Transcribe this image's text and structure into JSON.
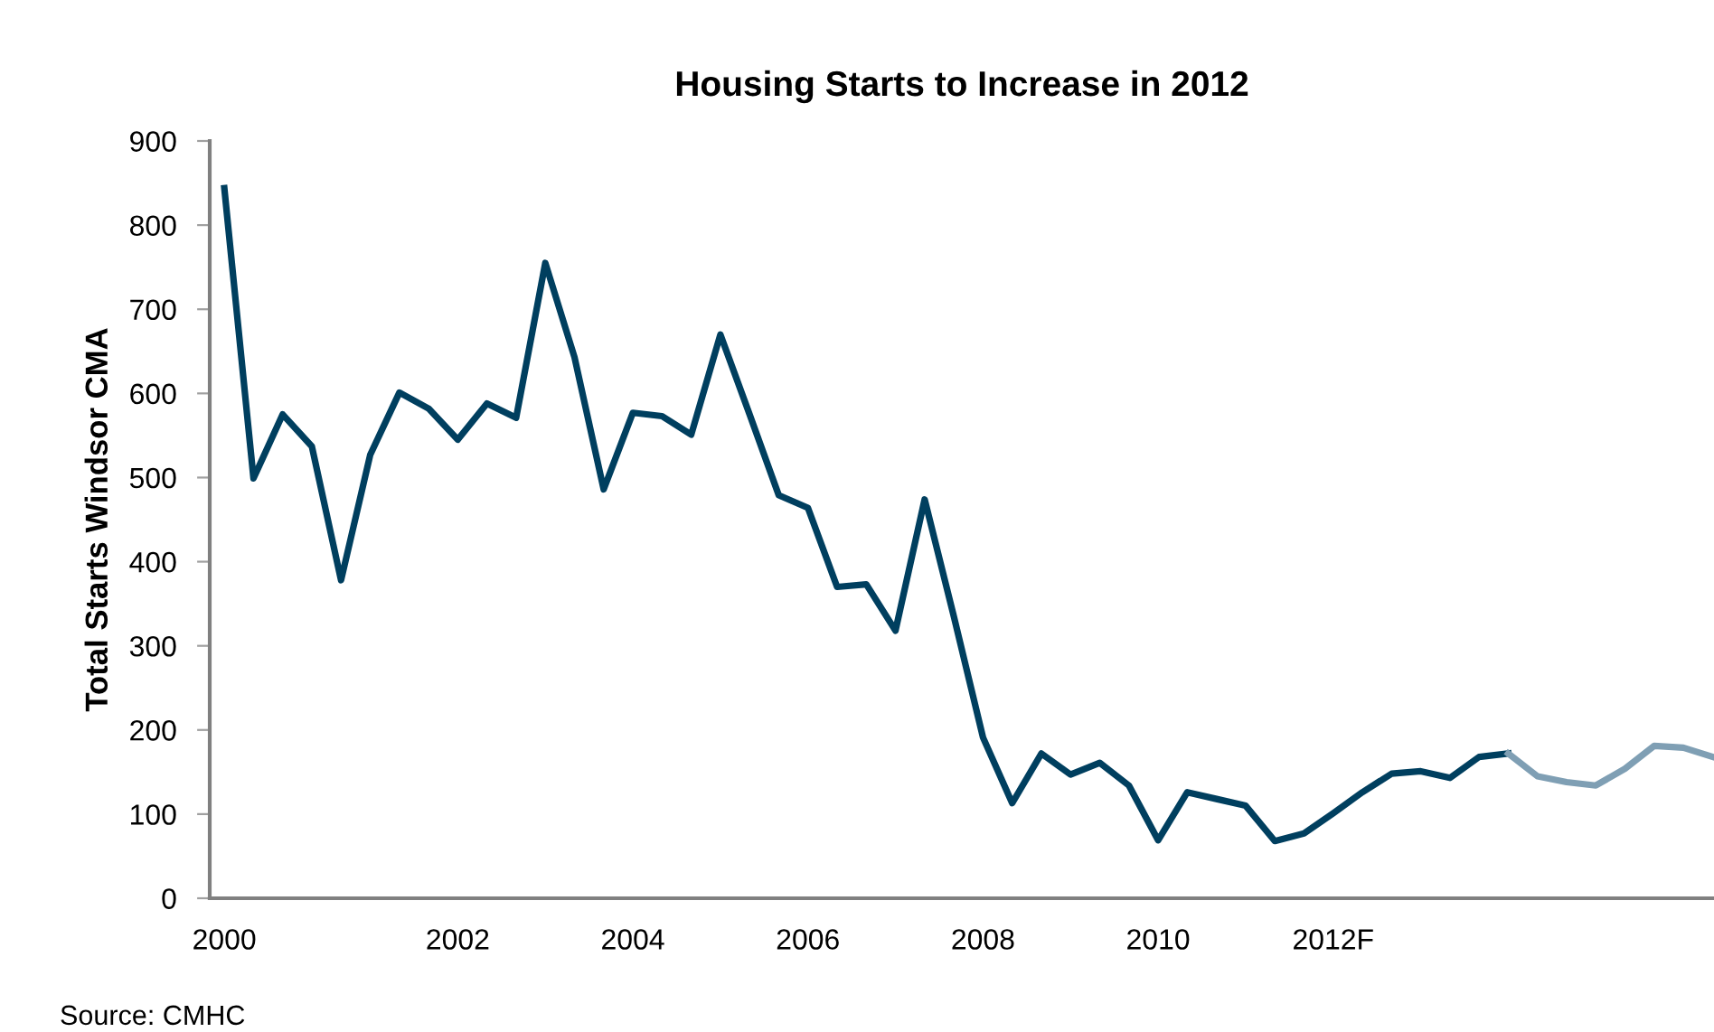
{
  "chart_data": {
    "type": "line",
    "title": "Housing Starts to Increase in 2012",
    "ylabel": "Total Starts Windsor CMA",
    "categories": [
      "2000",
      null,
      null,
      null,
      null,
      null,
      null,
      null,
      "2002",
      null,
      null,
      null,
      null,
      null,
      "2004",
      null,
      null,
      null,
      null,
      null,
      "2006",
      null,
      null,
      null,
      null,
      null,
      "2008",
      null,
      null,
      null,
      null,
      null,
      "2010",
      null,
      null,
      null,
      null,
      null,
      "2012F",
      null,
      null,
      null,
      null,
      null,
      null,
      null,
      null,
      null,
      null,
      null,
      null,
      null
    ],
    "series": [
      {
        "color": "#003f5f",
        "values": [
          844,
          499,
          575,
          537,
          378,
          527,
          601,
          582,
          545,
          588,
          571,
          755,
          643,
          486,
          577,
          573,
          551,
          670,
          575,
          479,
          464,
          370,
          373,
          318,
          474,
          335,
          191,
          113,
          172,
          147,
          161,
          134,
          69,
          126,
          118,
          110,
          68,
          77,
          101,
          126,
          148,
          151,
          143,
          168,
          172,
          null,
          null,
          null,
          null,
          null,
          null,
          null
        ]
      },
      {
        "color": "#7f9fb4",
        "values": [
          null,
          null,
          null,
          null,
          null,
          null,
          null,
          null,
          null,
          null,
          null,
          null,
          null,
          null,
          null,
          null,
          null,
          null,
          null,
          null,
          null,
          null,
          null,
          null,
          null,
          null,
          null,
          null,
          null,
          null,
          null,
          null,
          null,
          null,
          null,
          null,
          null,
          null,
          null,
          null,
          null,
          null,
          null,
          null,
          172,
          145,
          138,
          134,
          154,
          181,
          179,
          168
        ]
      }
    ],
    "ylim": [
      0,
      900
    ],
    "yticks": [
      0,
      100,
      200,
      300,
      400,
      500,
      600,
      700,
      800,
      900
    ],
    "grid": false,
    "marker": "none",
    "line_style": "solid",
    "annotations": [
      "Source: CMHC"
    ]
  }
}
